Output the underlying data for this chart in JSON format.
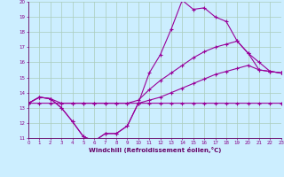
{
  "xlabel": "Windchill (Refroidissement éolien,°C)",
  "bg_color": "#cceeff",
  "grid_color": "#aaccbb",
  "line_color": "#990099",
  "x": [
    0,
    1,
    2,
    3,
    4,
    5,
    6,
    7,
    8,
    9,
    10,
    11,
    12,
    13,
    14,
    15,
    16,
    17,
    18,
    19,
    20,
    21,
    22,
    23
  ],
  "line1": [
    13.3,
    13.7,
    13.6,
    13.0,
    12.1,
    11.1,
    10.8,
    11.3,
    11.3,
    11.8,
    13.3,
    15.3,
    16.5,
    18.2,
    20.1,
    19.5,
    19.6,
    19.0,
    18.7,
    17.4,
    16.6,
    16.0,
    15.4,
    15.3
  ],
  "line2": [
    13.3,
    13.7,
    13.6,
    13.3,
    13.3,
    13.3,
    13.3,
    13.3,
    13.3,
    13.3,
    13.5,
    14.2,
    14.8,
    15.3,
    15.8,
    16.3,
    16.7,
    17.0,
    17.2,
    17.4,
    16.6,
    15.5,
    15.4,
    15.3
  ],
  "line3": [
    13.3,
    13.3,
    13.3,
    13.3,
    13.3,
    13.3,
    13.3,
    13.3,
    13.3,
    13.3,
    13.3,
    13.5,
    13.7,
    14.0,
    14.3,
    14.6,
    14.9,
    15.2,
    15.4,
    15.6,
    15.8,
    15.5,
    15.4,
    15.3
  ],
  "line4": [
    13.3,
    13.7,
    13.6,
    13.0,
    12.1,
    11.1,
    10.8,
    11.3,
    11.3,
    11.8,
    13.3,
    13.3,
    13.3,
    13.3,
    13.3,
    13.3,
    13.3,
    13.3,
    13.3,
    13.3,
    13.3,
    13.3,
    13.3,
    13.3
  ],
  "ylim": [
    11,
    20
  ],
  "xlim": [
    0,
    23
  ],
  "yticks": [
    11,
    12,
    13,
    14,
    15,
    16,
    17,
    18,
    19,
    20
  ],
  "xticks": [
    0,
    1,
    2,
    3,
    4,
    5,
    6,
    7,
    8,
    9,
    10,
    11,
    12,
    13,
    14,
    15,
    16,
    17,
    18,
    19,
    20,
    21,
    22,
    23
  ]
}
